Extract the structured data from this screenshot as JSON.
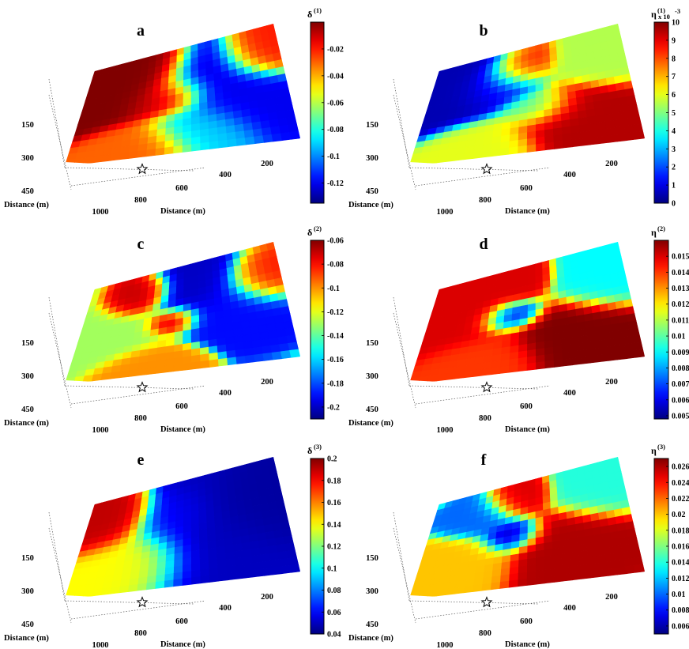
{
  "chart_data": [
    {
      "type": "heatmap",
      "panel_label": "a",
      "colorbar": {
        "symbol": "δ",
        "superscript": "(1)",
        "multiplier": "",
        "range": [
          -0.135,
          0.0
        ],
        "ticks": [
          "-0.02",
          "-0.04",
          "-0.06",
          "-0.08",
          "-0.1",
          "-0.12"
        ]
      },
      "axes": {
        "ylabel": "Distance (m)",
        "xlabel": "Distance (m)",
        "y_ticks": [
          "150",
          "300",
          "450"
        ],
        "x_ticks": [
          "1000",
          "800",
          "600",
          "400",
          "200"
        ]
      },
      "blobs": [
        [
          0.12,
          0.35,
          0.14,
          0.0
        ],
        [
          0.3,
          0.2,
          0.11,
          0.0
        ],
        [
          0.42,
          0.45,
          0.1,
          -0.01
        ],
        [
          0.3,
          0.85,
          0.1,
          -0.03
        ],
        [
          0.62,
          0.3,
          0.12,
          -0.125
        ],
        [
          0.75,
          0.55,
          0.12,
          -0.12
        ],
        [
          0.55,
          0.75,
          0.1,
          -0.09
        ],
        [
          0.9,
          0.2,
          0.1,
          -0.02
        ]
      ]
    },
    {
      "type": "heatmap",
      "panel_label": "b",
      "colorbar": {
        "symbol": "η",
        "superscript": "(1)",
        "multiplier": "x 10",
        "exponent": "-3",
        "range": [
          0,
          10
        ],
        "ticks": [
          "10",
          "9",
          "8",
          "7",
          "6",
          "5",
          "4",
          "3",
          "2",
          "1",
          "0"
        ]
      },
      "axes": {
        "ylabel": "Distance (m)",
        "xlabel": "Distance (m)",
        "y_ticks": [
          "150",
          "300",
          "450"
        ],
        "x_ticks": [
          "1000",
          "800",
          "600",
          "400",
          "200"
        ]
      },
      "blobs": [
        [
          0.12,
          0.3,
          0.15,
          0.5
        ],
        [
          0.35,
          0.3,
          0.1,
          1.5
        ],
        [
          0.45,
          0.2,
          0.08,
          9.0
        ],
        [
          0.68,
          0.7,
          0.12,
          9.5
        ],
        [
          0.55,
          0.6,
          0.08,
          4.0
        ],
        [
          0.85,
          0.25,
          0.1,
          5.5
        ],
        [
          0.3,
          0.85,
          0.1,
          6.0
        ]
      ]
    },
    {
      "type": "heatmap",
      "panel_label": "c",
      "colorbar": {
        "symbol": "δ",
        "superscript": "(2)",
        "multiplier": "",
        "range": [
          -0.21,
          -0.06
        ],
        "ticks": [
          "-0.06",
          "-0.08",
          "-0.1",
          "-0.12",
          "-0.14",
          "-0.16",
          "-0.18",
          "-0.2"
        ]
      },
      "axes": {
        "ylabel": "Distance (m)",
        "xlabel": "Distance (m)",
        "y_ticks": [
          "150",
          "300",
          "450"
        ],
        "x_ticks": [
          "1000",
          "800",
          "600",
          "400",
          "200"
        ]
      },
      "blobs": [
        [
          0.28,
          0.25,
          0.07,
          -0.07
        ],
        [
          0.45,
          0.5,
          0.06,
          -0.065
        ],
        [
          0.55,
          0.3,
          0.1,
          -0.2
        ],
        [
          0.72,
          0.45,
          0.12,
          -0.19
        ],
        [
          0.15,
          0.55,
          0.12,
          -0.13
        ],
        [
          0.9,
          0.3,
          0.08,
          -0.08
        ],
        [
          0.35,
          0.9,
          0.08,
          -0.1
        ]
      ]
    },
    {
      "type": "heatmap",
      "panel_label": "d",
      "colorbar": {
        "symbol": "η",
        "superscript": "(2)",
        "multiplier": "",
        "range": [
          0.0048,
          0.016
        ],
        "ticks": [
          "0.015",
          "0.014",
          "0.013",
          "0.012",
          "0.011",
          "0.01",
          "0.009",
          "0.008",
          "0.007",
          "0.006",
          "0.005"
        ]
      },
      "axes": {
        "ylabel": "Distance (m)",
        "xlabel": "Distance (m)",
        "y_ticks": [
          "150",
          "300",
          "450"
        ],
        "x_ticks": [
          "1000",
          "800",
          "600",
          "400",
          "200"
        ]
      },
      "blobs": [
        [
          0.2,
          0.4,
          0.14,
          0.015
        ],
        [
          0.45,
          0.2,
          0.07,
          0.015
        ],
        [
          0.42,
          0.45,
          0.07,
          0.005
        ],
        [
          0.68,
          0.65,
          0.12,
          0.016
        ],
        [
          0.85,
          0.3,
          0.1,
          0.009
        ],
        [
          0.3,
          0.8,
          0.1,
          0.014
        ]
      ]
    },
    {
      "type": "heatmap",
      "panel_label": "e",
      "colorbar": {
        "symbol": "δ",
        "superscript": "(3)",
        "multiplier": "",
        "range": [
          0.04,
          0.2
        ],
        "ticks": [
          "0.2",
          "0.18",
          "0.16",
          "0.14",
          "0.12",
          "0.1",
          "0.08",
          "0.06",
          "0.04"
        ]
      },
      "axes": {
        "ylabel": "Distance (m)",
        "xlabel": "Distance (m)",
        "y_ticks": [
          "150",
          "300",
          "450"
        ],
        "x_ticks": [
          "1000",
          "800",
          "600",
          "400",
          "200"
        ]
      },
      "blobs": [
        [
          0.12,
          0.35,
          0.1,
          0.19
        ],
        [
          0.25,
          0.6,
          0.12,
          0.14
        ],
        [
          0.45,
          0.4,
          0.1,
          0.06
        ],
        [
          0.62,
          0.5,
          0.15,
          0.05
        ],
        [
          0.85,
          0.4,
          0.12,
          0.045
        ]
      ]
    },
    {
      "type": "heatmap",
      "panel_label": "f",
      "colorbar": {
        "symbol": "η",
        "superscript": "(3)",
        "multiplier": "",
        "range": [
          0.005,
          0.027
        ],
        "ticks": [
          "0.026",
          "0.024",
          "0.022",
          "0.02",
          "0.018",
          "0.016",
          "0.014",
          "0.012",
          "0.01",
          "0.008",
          "0.006"
        ]
      },
      "axes": {
        "ylabel": "Distance (m)",
        "xlabel": "Distance (m)",
        "y_ticks": [
          "150",
          "300",
          "450"
        ],
        "x_ticks": [
          "1000",
          "800",
          "600",
          "400",
          "200"
        ]
      },
      "blobs": [
        [
          0.45,
          0.2,
          0.07,
          0.025
        ],
        [
          0.42,
          0.5,
          0.07,
          0.006
        ],
        [
          0.68,
          0.6,
          0.12,
          0.026
        ],
        [
          0.2,
          0.65,
          0.1,
          0.02
        ],
        [
          0.85,
          0.25,
          0.1,
          0.014
        ],
        [
          0.3,
          0.3,
          0.08,
          0.01
        ]
      ]
    }
  ],
  "marker": "star"
}
